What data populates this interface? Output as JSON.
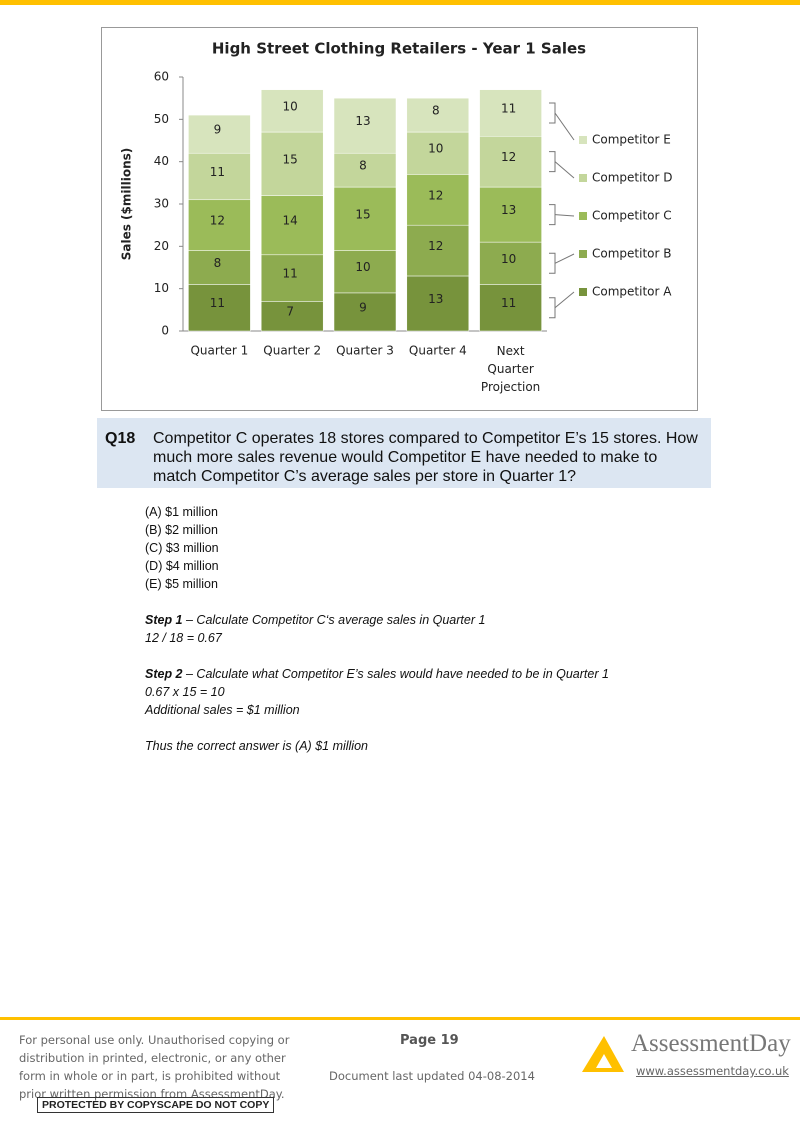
{
  "chart_data": {
    "type": "stacked-bar",
    "title": "High Street Clothing Retailers - Year 1 Sales",
    "y_label": "Sales ($millions)",
    "categories": [
      "Quarter 1",
      "Quarter 2",
      "Quarter 3",
      "Quarter 4",
      "Next Quarter Projection"
    ],
    "series": [
      {
        "name": "Competitor A",
        "color": "#77933c",
        "values": [
          11,
          7,
          9,
          13,
          11
        ]
      },
      {
        "name": "Competitor B",
        "color": "#8dab4f",
        "values": [
          8,
          11,
          10,
          12,
          10
        ]
      },
      {
        "name": "Competitor C",
        "color": "#9bbb59",
        "values": [
          12,
          14,
          15,
          12,
          13
        ]
      },
      {
        "name": "Competitor D",
        "color": "#c3d69b",
        "values": [
          11,
          15,
          8,
          10,
          12
        ]
      },
      {
        "name": "Competitor E",
        "color": "#d7e4bd",
        "values": [
          9,
          10,
          13,
          8,
          11
        ]
      }
    ],
    "ylim": [
      0,
      60
    ],
    "yticks": [
      0,
      10,
      20,
      30,
      40,
      50,
      60
    ],
    "legend": "right"
  },
  "question": {
    "number": "Q18",
    "text": "Competitor C operates 18 stores compared to Competitor E’s 15 stores. How much more sales revenue would Competitor E have needed to make to match Competitor C’s average sales per store in Quarter 1?"
  },
  "options": [
    "(A) $1 million",
    "(B) $2 million",
    "(C) $3 million",
    "(D) $4 million",
    "(E) $5 million"
  ],
  "steps": [
    {
      "label": "Step 1",
      "text": " – Calculate Competitor C‘s average sales in Quarter 1",
      "lines": [
        "12 / 18 = 0.67"
      ]
    },
    {
      "label": "Step 2",
      "text": " – Calculate what Competitor E’s sales would have needed to be in Quarter 1",
      "lines": [
        "0.67 x 15 = 10",
        "Additional sales = $1 million"
      ]
    }
  ],
  "conclusion": "Thus the correct answer is (A) $1 million",
  "footer": {
    "notice": [
      "For personal use only. Unauthorised copying or",
      "distribution in printed, electronic, or any other",
      "form in whole or in part, is prohibited without",
      "prior written permission from AssessmentDay."
    ],
    "copyscape": "PROTECTED BY COPYSCAPE DO NOT COPY",
    "page": "Page 19",
    "updated": "Document last updated 04-08-2014",
    "logo": "AssessmentDay",
    "url": "www.assessmentday.co.uk"
  }
}
